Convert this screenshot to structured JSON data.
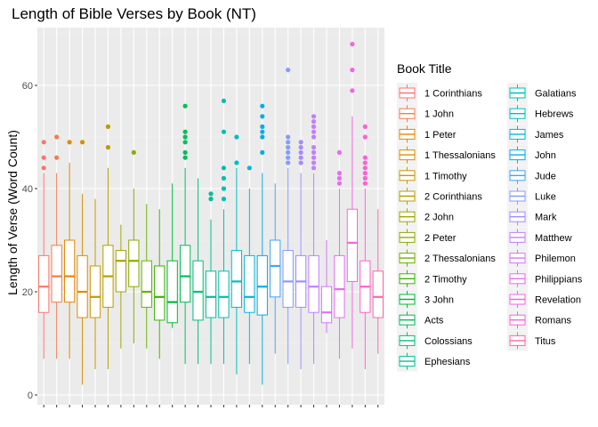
{
  "chart_data": {
    "type": "box",
    "title": "Length of Bible Verses by Book (NT)",
    "xlabel": "",
    "ylabel": "Length of Verse (Word Count)",
    "ylim": [
      -1,
      71
    ],
    "yticks": [
      0,
      20,
      40,
      60
    ],
    "grid": true,
    "panel_background": "#ebebeb",
    "legend": {
      "title": "Book Title",
      "position": "right",
      "columns": 2
    },
    "series": [
      {
        "name": "1 Corinthians",
        "color": "#f8766d",
        "min": 7,
        "q1": 16,
        "median": 21,
        "q3": 27,
        "max": 43,
        "outliers": [
          44,
          46,
          49
        ]
      },
      {
        "name": "1 John",
        "color": "#f07e4d",
        "min": 7,
        "q1": 18,
        "median": 23,
        "q3": 29,
        "max": 43,
        "outliers": [
          46,
          50
        ]
      },
      {
        "name": "1 Peter",
        "color": "#e58700",
        "min": 7,
        "q1": 18,
        "median": 23,
        "q3": 30,
        "max": 45,
        "outliers": [
          49
        ]
      },
      {
        "name": "1 Thessalonians",
        "color": "#d89000",
        "min": 2,
        "q1": 15,
        "median": 20,
        "q3": 27,
        "max": 39,
        "outliers": [
          49
        ]
      },
      {
        "name": "1 Timothy",
        "color": "#c99800",
        "min": 5,
        "q1": 15,
        "median": 19,
        "q3": 25,
        "max": 38,
        "outliers": []
      },
      {
        "name": "2 Corinthians",
        "color": "#b79f00",
        "min": 5,
        "q1": 17,
        "median": 23,
        "q3": 29,
        "max": 44,
        "outliers": [
          48,
          52
        ]
      },
      {
        "name": "2 John",
        "color": "#a3a500",
        "min": 9,
        "q1": 20,
        "median": 26,
        "q3": 28,
        "max": 33,
        "outliers": []
      },
      {
        "name": "2 Peter",
        "color": "#8cab00",
        "min": 10,
        "q1": 21,
        "median": 26,
        "q3": 30,
        "max": 40,
        "outliers": [
          47
        ]
      },
      {
        "name": "2 Thessalonians",
        "color": "#6bb100",
        "min": 9,
        "q1": 17,
        "median": 20,
        "q3": 26,
        "max": 37,
        "outliers": []
      },
      {
        "name": "2 Timothy",
        "color": "#39b600",
        "min": 7,
        "q1": 14.5,
        "median": 19,
        "q3": 25,
        "max": 36,
        "outliers": []
      },
      {
        "name": "3 John",
        "color": "#00ba38",
        "min": 13,
        "q1": 14,
        "median": 18,
        "q3": 26,
        "max": 41,
        "outliers": []
      },
      {
        "name": "Acts",
        "color": "#00bd5c",
        "min": 6,
        "q1": 18,
        "median": 23,
        "q3": 29,
        "max": 44,
        "outliers": [
          46,
          47,
          49,
          50,
          51,
          56
        ]
      },
      {
        "name": "Colossians",
        "color": "#00c07b",
        "min": 6,
        "q1": 14.5,
        "median": 20,
        "q3": 26,
        "max": 42,
        "outliers": []
      },
      {
        "name": "Ephesians",
        "color": "#00c097",
        "min": 6,
        "q1": 15,
        "median": 19,
        "q3": 24,
        "max": 34,
        "outliers": [
          38,
          39
        ]
      },
      {
        "name": "Galatians",
        "color": "#00bfb0",
        "min": 6,
        "q1": 15,
        "median": 19,
        "q3": 24,
        "max": 36,
        "outliers": [
          38,
          40,
          42,
          44,
          51,
          57
        ]
      },
      {
        "name": "Hebrews",
        "color": "#00bcc7",
        "min": 4,
        "q1": 17,
        "median": 22,
        "q3": 28,
        "max": 44,
        "outliers": [
          45,
          50
        ]
      },
      {
        "name": "James",
        "color": "#00b6da",
        "min": 6,
        "q1": 16,
        "median": 19,
        "q3": 27,
        "max": 40,
        "outliers": [
          44
        ]
      },
      {
        "name": "John",
        "color": "#00aeea",
        "min": 2,
        "q1": 15.5,
        "median": 21,
        "q3": 27,
        "max": 43,
        "outliers": [
          47,
          50,
          51,
          52,
          54,
          56
        ]
      },
      {
        "name": "Jude",
        "color": "#3ea6f5",
        "min": 8,
        "q1": 19,
        "median": 25,
        "q3": 30,
        "max": 41,
        "outliers": []
      },
      {
        "name": "Luke",
        "color": "#859cff",
        "min": 6,
        "q1": 17,
        "median": 22,
        "q3": 28,
        "max": 44,
        "outliers": [
          45,
          46,
          47,
          48,
          49,
          50,
          63
        ]
      },
      {
        "name": "Mark",
        "color": "#a58aff",
        "min": 5,
        "q1": 17,
        "median": 22,
        "q3": 27,
        "max": 43,
        "outliers": [
          45,
          46,
          47,
          48,
          49
        ]
      },
      {
        "name": "Matthew",
        "color": "#c17fff",
        "min": 6,
        "q1": 16,
        "median": 21,
        "q3": 27,
        "max": 43,
        "outliers": [
          44,
          45,
          46,
          47,
          48,
          50,
          51,
          52,
          53,
          54
        ]
      },
      {
        "name": "Philemon",
        "color": "#d575fe",
        "min": 12,
        "q1": 14,
        "median": 16,
        "q3": 21,
        "max": 30,
        "outliers": []
      },
      {
        "name": "Philippians",
        "color": "#e76bf3",
        "min": 7,
        "q1": 15,
        "median": 20.5,
        "q3": 27,
        "max": 40,
        "outliers": [
          41,
          42,
          43,
          47
        ]
      },
      {
        "name": "Revelation",
        "color": "#f564e3",
        "min": 9,
        "q1": 22,
        "median": 29.5,
        "q3": 36,
        "max": 54,
        "outliers": [
          59,
          63,
          68
        ]
      },
      {
        "name": "Romans",
        "color": "#fd61d1",
        "min": 5,
        "q1": 16,
        "median": 21,
        "q3": 26,
        "max": 40,
        "outliers": [
          41,
          42,
          43,
          44,
          45,
          46,
          50,
          52
        ]
      },
      {
        "name": "Titus",
        "color": "#ff66a8",
        "min": 8,
        "q1": 15,
        "median": 19,
        "q3": 24,
        "max": 36,
        "outliers": []
      }
    ]
  }
}
